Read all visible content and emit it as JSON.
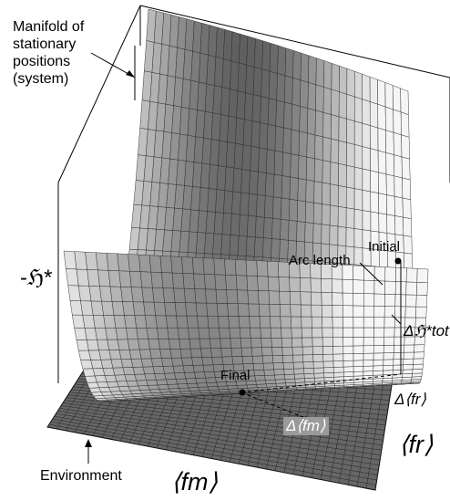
{
  "labels": {
    "manifold_line1": "Manifold of",
    "manifold_line2": "stationary",
    "manifold_line3": "positions",
    "manifold_line4": "(system)",
    "environment": "Environment",
    "neg_h_star": "-ℌ*",
    "initial": "Initial",
    "arc_length": "Arc length",
    "final": "Final",
    "delta_h_tot": "Δℌ*tot",
    "delta_fr": "Δ⟨fr⟩",
    "delta_fm": "Δ⟨fm⟩",
    "fr": "⟨fr⟩",
    "fm": "⟨fm⟩"
  },
  "colors": {
    "surface_dark": "#5a5a5a",
    "surface_light": "#e8e8e8",
    "plane": "#666666",
    "grid": "#222222",
    "box_label": "#9a9a9a"
  }
}
